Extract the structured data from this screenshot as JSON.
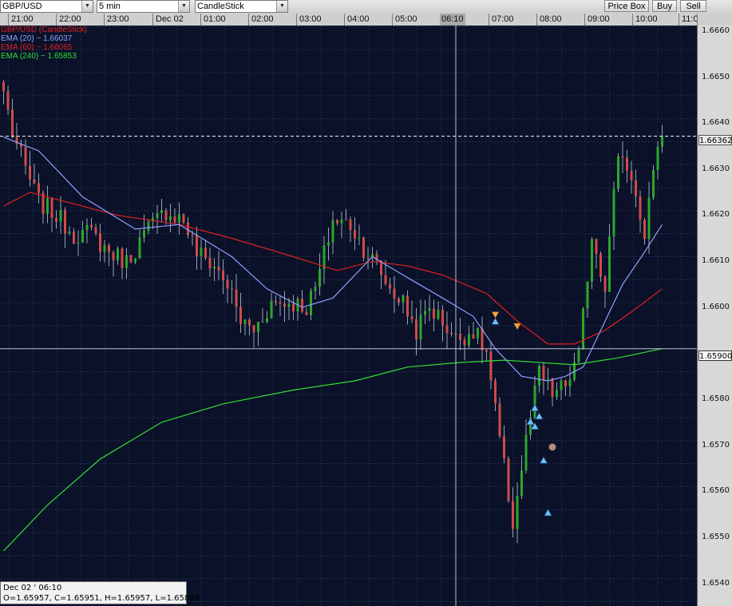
{
  "toolbar": {
    "symbol": "GBP/USD",
    "timeframe": "5 min",
    "chart_type": "CandleStick",
    "price_box_label": "Price Box",
    "buy_label": "Buy",
    "sell_label": "Sell"
  },
  "time_axis": {
    "labels": [
      "21:00",
      "22:00",
      "23:00",
      "Dec 02",
      "01:00",
      "02:00",
      "03:00",
      "04:00",
      "05:00",
      "06:10",
      "07:00",
      "08:00",
      "09:00",
      "10:00",
      "11:0"
    ]
  },
  "legend": {
    "main": {
      "text": "GBP/USD (CandleStick)",
      "color": "#e02020"
    },
    "ema20": {
      "text": "EMA (20) ~ 1.66037",
      "color": "#8da2ff"
    },
    "ema60": {
      "text": "EMA (60) ~ 1.66065",
      "color": "#e02020"
    },
    "ema240": {
      "text": "EMA (240) ~ 1.65853",
      "color": "#33dd33"
    }
  },
  "price_axis": {
    "labels": [
      "1.6660",
      "1.6650",
      "1.6640",
      "1.6630",
      "1.6620",
      "1.6610",
      "1.6600",
      "1.6580",
      "1.6570",
      "1.6560",
      "1.6550",
      "1.6540"
    ],
    "current_price_tag": "1.66362",
    "crosshair_price_tag": "1.65900"
  },
  "crosshair_info": {
    "time": "Dec 02 ' 06:10",
    "ohlc": "O=1.65957, C=1.65951, H=1.65957, L=1.65888"
  },
  "colors": {
    "background": "#0a1128",
    "grid": "#22304f",
    "bull_candle": "#2aa82a",
    "bear_candle": "#d24a4a",
    "ema20": "#8da2ff",
    "ema60": "#e02020",
    "ema240": "#33dd33",
    "buy_marker": "#6cc1ff",
    "sell_marker": "#f2a544",
    "position_marker": "#b58a7a"
  },
  "chart_data": {
    "type": "candlestick",
    "title": "GBP/USD (CandleStick)",
    "interval": "5 min",
    "ylim": [
      1.6538,
      1.6664
    ],
    "x_ticks": [
      "21:00",
      "22:00",
      "23:00",
      "Dec 02",
      "01:00",
      "02:00",
      "03:00",
      "04:00",
      "05:00",
      "06:10",
      "07:00",
      "08:00",
      "09:00",
      "10:00",
      "11:0"
    ],
    "y_ticks": [
      1.654,
      1.655,
      1.656,
      1.657,
      1.658,
      1.659,
      1.66,
      1.661,
      1.662,
      1.663,
      1.664,
      1.665,
      1.666
    ],
    "anchors": [
      {
        "i": 0,
        "p": 1.6646
      },
      {
        "i": 2,
        "p": 1.6637
      },
      {
        "i": 5,
        "p": 1.6629
      },
      {
        "i": 8,
        "p": 1.6622
      },
      {
        "i": 12,
        "p": 1.6619
      },
      {
        "i": 16,
        "p": 1.6615
      },
      {
        "i": 20,
        "p": 1.6615
      },
      {
        "i": 24,
        "p": 1.6611
      },
      {
        "i": 28,
        "p": 1.6609
      },
      {
        "i": 33,
        "p": 1.6616
      },
      {
        "i": 37,
        "p": 1.662
      },
      {
        "i": 41,
        "p": 1.6618
      },
      {
        "i": 44,
        "p": 1.6611
      },
      {
        "i": 48,
        "p": 1.6608
      },
      {
        "i": 51,
        "p": 1.6604
      },
      {
        "i": 54,
        "p": 1.6596
      },
      {
        "i": 57,
        "p": 1.6594
      },
      {
        "i": 61,
        "p": 1.66
      },
      {
        "i": 66,
        "p": 1.66
      },
      {
        "i": 69,
        "p": 1.6599
      },
      {
        "i": 71,
        "p": 1.6603
      },
      {
        "i": 75,
        "p": 1.6618
      },
      {
        "i": 79,
        "p": 1.6617
      },
      {
        "i": 82,
        "p": 1.6612
      },
      {
        "i": 85,
        "p": 1.6608
      },
      {
        "i": 88,
        "p": 1.6603
      },
      {
        "i": 91,
        "p": 1.66
      },
      {
        "i": 94,
        "p": 1.6594
      },
      {
        "i": 97,
        "p": 1.6599
      },
      {
        "i": 100,
        "p": 1.6596
      },
      {
        "i": 103,
        "p": 1.6592
      },
      {
        "i": 107,
        "p": 1.6594
      },
      {
        "i": 110,
        "p": 1.6589
      },
      {
        "i": 113,
        "p": 1.657
      },
      {
        "i": 116,
        "p": 1.6552
      },
      {
        "i": 119,
        "p": 1.657
      },
      {
        "i": 122,
        "p": 1.6585
      },
      {
        "i": 125,
        "p": 1.658
      },
      {
        "i": 128,
        "p": 1.6582
      },
      {
        "i": 131,
        "p": 1.6588
      },
      {
        "i": 134,
        "p": 1.6615
      },
      {
        "i": 137,
        "p": 1.6604
      },
      {
        "i": 140,
        "p": 1.6633
      },
      {
        "i": 143,
        "p": 1.6628
      },
      {
        "i": 146,
        "p": 1.6612
      },
      {
        "i": 148,
        "p": 1.663
      },
      {
        "i": 150,
        "p": 1.66362
      }
    ],
    "ema20": [
      [
        0,
        1.6636
      ],
      [
        8,
        1.6633
      ],
      [
        18,
        1.6623
      ],
      [
        30,
        1.6616
      ],
      [
        40,
        1.6617
      ],
      [
        52,
        1.661
      ],
      [
        60,
        1.6603
      ],
      [
        68,
        1.6599
      ],
      [
        75,
        1.6601
      ],
      [
        84,
        1.661
      ],
      [
        91,
        1.6606
      ],
      [
        100,
        1.6601
      ],
      [
        107,
        1.6597
      ],
      [
        112,
        1.659
      ],
      [
        118,
        1.6584
      ],
      [
        124,
        1.6583
      ],
      [
        128,
        1.6584
      ],
      [
        132,
        1.6586
      ],
      [
        136,
        1.6594
      ],
      [
        141,
        1.6604
      ],
      [
        146,
        1.6611
      ],
      [
        150,
        1.6617
      ]
    ],
    "ema60": [
      [
        0,
        1.6621
      ],
      [
        6,
        1.6624
      ],
      [
        14,
        1.6622
      ],
      [
        26,
        1.6619
      ],
      [
        40,
        1.6617
      ],
      [
        52,
        1.6614
      ],
      [
        66,
        1.661
      ],
      [
        76,
        1.6607
      ],
      [
        84,
        1.6609
      ],
      [
        92,
        1.6608
      ],
      [
        100,
        1.6606
      ],
      [
        110,
        1.6602
      ],
      [
        117,
        1.6596
      ],
      [
        124,
        1.6591
      ],
      [
        130,
        1.6591
      ],
      [
        137,
        1.6594
      ],
      [
        143,
        1.6598
      ],
      [
        150,
        1.6603
      ]
    ],
    "ema240": [
      [
        0,
        1.6546
      ],
      [
        10,
        1.6556
      ],
      [
        22,
        1.6566
      ],
      [
        36,
        1.6574
      ],
      [
        50,
        1.6578
      ],
      [
        66,
        1.6581
      ],
      [
        80,
        1.6583
      ],
      [
        92,
        1.6586
      ],
      [
        104,
        1.6587
      ],
      [
        114,
        1.65875
      ],
      [
        122,
        1.6587
      ],
      [
        130,
        1.65865
      ],
      [
        140,
        1.6588
      ],
      [
        150,
        1.659
      ]
    ],
    "trade_markers": [
      {
        "i": 112,
        "p": 1.65975,
        "side": "sell"
      },
      {
        "i": 112,
        "p": 1.65958,
        "side": "buy"
      },
      {
        "i": 117,
        "p": 1.6595,
        "side": "sell"
      },
      {
        "i": 120,
        "p": 1.6574,
        "side": "buy"
      },
      {
        "i": 121,
        "p": 1.6577,
        "side": "buy"
      },
      {
        "i": 121,
        "p": 1.6573,
        "side": "buy"
      },
      {
        "i": 122,
        "p": 1.65752,
        "side": "buy"
      },
      {
        "i": 123,
        "p": 1.65656,
        "side": "buy"
      },
      {
        "i": 124,
        "p": 1.65542,
        "side": "buy"
      }
    ],
    "position_marker": {
      "i": 125,
      "p": 1.65686
    },
    "current_price": 1.66362,
    "crosshair": {
      "time": "06:10",
      "price": 1.659
    }
  }
}
